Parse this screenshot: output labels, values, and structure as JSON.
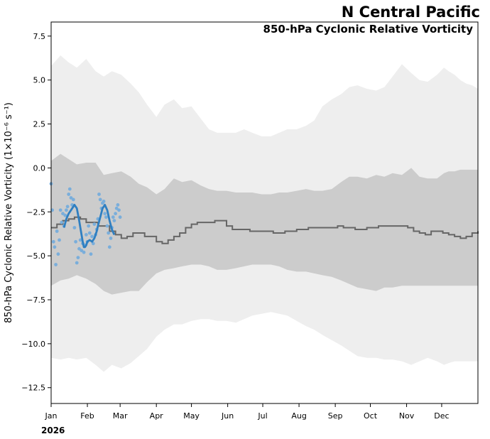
{
  "chart_data": {
    "type": "line",
    "title": "N Central Pacific",
    "subtitle": "850-hPa Cyclonic Relative Vorticity",
    "ylabel": "850-hPa Cyclonic Relative Vorticity (1×10⁻⁶ s⁻¹)",
    "xlabel": "",
    "year_label": "2026",
    "ylim": [
      -13.4,
      8.3
    ],
    "xlim": [
      0,
      365
    ],
    "y_ticks": [
      7.5,
      5.0,
      2.5,
      0.0,
      -2.5,
      -5.0,
      -7.5,
      -10.0,
      -12.5
    ],
    "y_tick_labels": [
      "7.5",
      "5.0",
      "2.5",
      "0.0",
      "−2.5",
      "−5.0",
      "−7.5",
      "−10.0",
      "−12.5"
    ],
    "x_ticks": [
      0,
      31,
      59,
      90,
      120,
      151,
      181,
      212,
      243,
      273,
      304,
      334
    ],
    "x_tick_labels": [
      "Jan",
      "Feb",
      "Mar",
      "Apr",
      "May",
      "Jun",
      "Jul",
      "Aug",
      "Sep",
      "Oct",
      "Nov",
      "Dec"
    ],
    "grid": false,
    "colors": {
      "outer_band": "#eeeeee",
      "inner_band": "#cccccc",
      "climatology": "#666666",
      "observed_points": "#7aaedb",
      "smoothed": "#2f7fc1"
    },
    "outer_band": {
      "x": [
        0,
        8,
        15,
        22,
        30,
        38,
        45,
        52,
        60,
        68,
        75,
        82,
        90,
        97,
        105,
        112,
        120,
        128,
        135,
        142,
        150,
        158,
        165,
        172,
        180,
        188,
        195,
        202,
        210,
        218,
        225,
        232,
        240,
        248,
        255,
        262,
        270,
        278,
        285,
        292,
        300,
        308,
        315,
        322,
        330,
        336,
        340,
        345,
        350,
        355,
        360,
        365
      ],
      "upper": [
        5.8,
        6.4,
        6.0,
        5.7,
        6.2,
        5.5,
        5.2,
        5.5,
        5.3,
        4.8,
        4.3,
        3.6,
        2.9,
        3.6,
        3.9,
        3.4,
        3.5,
        2.8,
        2.2,
        2.0,
        2.0,
        2.0,
        2.2,
        2.0,
        1.8,
        1.8,
        2.0,
        2.2,
        2.2,
        2.4,
        2.7,
        3.5,
        3.9,
        4.2,
        4.6,
        4.7,
        4.5,
        4.4,
        4.6,
        5.2,
        5.9,
        5.4,
        5.0,
        4.9,
        5.3,
        5.7,
        5.5,
        5.3,
        5.0,
        4.8,
        4.7,
        4.5
      ],
      "lower": [
        -10.8,
        -10.9,
        -10.8,
        -10.9,
        -10.8,
        -11.2,
        -11.6,
        -11.2,
        -11.4,
        -11.1,
        -10.7,
        -10.3,
        -9.6,
        -9.2,
        -8.9,
        -8.9,
        -8.7,
        -8.6,
        -8.6,
        -8.7,
        -8.7,
        -8.8,
        -8.6,
        -8.4,
        -8.3,
        -8.2,
        -8.3,
        -8.4,
        -8.7,
        -9.0,
        -9.2,
        -9.5,
        -9.8,
        -10.1,
        -10.4,
        -10.7,
        -10.8,
        -10.8,
        -10.9,
        -10.9,
        -11.0,
        -11.2,
        -11.0,
        -10.8,
        -11.0,
        -11.2,
        -11.1,
        -11.0,
        -11.0,
        -11.0,
        -11.0,
        -11.0
      ],
      "band_x_segments": [
        0,
        365
      ]
    },
    "inner_band": {
      "x": [
        0,
        8,
        15,
        22,
        30,
        38,
        45,
        52,
        60,
        68,
        75,
        82,
        90,
        97,
        105,
        112,
        120,
        128,
        135,
        142,
        150,
        158,
        165,
        172,
        180,
        188,
        195,
        202,
        210,
        218,
        225,
        232,
        240,
        248,
        255,
        262,
        270,
        278,
        285,
        292,
        300,
        308,
        315,
        322,
        330,
        336,
        340,
        345,
        350,
        355,
        360,
        365
      ],
      "upper": [
        0.4,
        0.8,
        0.5,
        0.2,
        0.3,
        0.3,
        -0.4,
        -0.3,
        -0.2,
        -0.5,
        -0.9,
        -1.1,
        -1.5,
        -1.2,
        -0.6,
        -0.8,
        -0.7,
        -1.0,
        -1.2,
        -1.3,
        -1.3,
        -1.4,
        -1.4,
        -1.4,
        -1.5,
        -1.5,
        -1.4,
        -1.4,
        -1.3,
        -1.2,
        -1.3,
        -1.3,
        -1.2,
        -0.8,
        -0.5,
        -0.5,
        -0.6,
        -0.4,
        -0.5,
        -0.3,
        -0.4,
        0.0,
        -0.5,
        -0.6,
        -0.6,
        -0.3,
        -0.2,
        -0.2,
        -0.1,
        -0.1,
        -0.1,
        -0.1
      ],
      "lower": [
        -6.7,
        -6.4,
        -6.3,
        -6.1,
        -6.3,
        -6.6,
        -7.0,
        -7.2,
        -7.1,
        -7.0,
        -7.0,
        -6.5,
        -6.0,
        -5.8,
        -5.7,
        -5.6,
        -5.5,
        -5.5,
        -5.6,
        -5.8,
        -5.8,
        -5.7,
        -5.6,
        -5.5,
        -5.5,
        -5.5,
        -5.6,
        -5.8,
        -5.9,
        -5.9,
        -6.0,
        -6.1,
        -6.2,
        -6.4,
        -6.6,
        -6.8,
        -6.9,
        -7.0,
        -6.8,
        -6.8,
        -6.7,
        -6.7,
        -6.7,
        -6.7,
        -6.7,
        -6.7,
        -6.7,
        -6.7,
        -6.7,
        -6.7,
        -6.7,
        -6.7
      ]
    },
    "climatology": {
      "x": [
        0,
        5,
        10,
        15,
        20,
        25,
        30,
        40,
        50,
        55,
        60,
        65,
        70,
        80,
        90,
        95,
        100,
        105,
        110,
        115,
        120,
        125,
        130,
        140,
        150,
        155,
        160,
        170,
        180,
        190,
        200,
        210,
        220,
        230,
        240,
        245,
        250,
        260,
        270,
        280,
        290,
        300,
        305,
        310,
        315,
        320,
        325,
        330,
        335,
        340,
        345,
        350,
        355,
        360,
        365
      ],
      "y": [
        -3.4,
        -3.2,
        -3.0,
        -2.9,
        -2.8,
        -2.9,
        -3.1,
        -3.3,
        -3.6,
        -3.8,
        -4.0,
        -3.9,
        -3.7,
        -3.9,
        -4.2,
        -4.3,
        -4.1,
        -3.9,
        -3.7,
        -3.4,
        -3.2,
        -3.1,
        -3.1,
        -3.0,
        -3.3,
        -3.5,
        -3.5,
        -3.6,
        -3.6,
        -3.7,
        -3.6,
        -3.5,
        -3.4,
        -3.4,
        -3.4,
        -3.3,
        -3.4,
        -3.5,
        -3.4,
        -3.3,
        -3.3,
        -3.3,
        -3.4,
        -3.6,
        -3.7,
        -3.8,
        -3.6,
        -3.6,
        -3.7,
        -3.8,
        -3.9,
        -4.0,
        -3.9,
        -3.7,
        -3.6
      ]
    },
    "observed_points": {
      "x": [
        0,
        1,
        2,
        3,
        4,
        5,
        6,
        7,
        8,
        9,
        10,
        11,
        12,
        13,
        14,
        15,
        16,
        17,
        18,
        19,
        20,
        21,
        22,
        23,
        24,
        25,
        26,
        27,
        28,
        29,
        30,
        31,
        32,
        33,
        34,
        35,
        36,
        37,
        38,
        39,
        40,
        41,
        42,
        43,
        44,
        45,
        46,
        47,
        48,
        49,
        50,
        51,
        52,
        53,
        54,
        55,
        56,
        57,
        58,
        59
      ],
      "y": [
        -0.9,
        -2.4,
        -4.2,
        -4.5,
        -5.5,
        -3.6,
        -4.9,
        -4.1,
        -2.4,
        -3.1,
        -2.6,
        -3.3,
        -2.7,
        -2.4,
        -2.2,
        -1.5,
        -1.2,
        -1.7,
        -2.1,
        -1.8,
        -3.4,
        -4.2,
        -5.4,
        -5.1,
        -4.6,
        -4.1,
        -4.7,
        -4.3,
        -4.8,
        -4.4,
        -3.8,
        -4.2,
        -3.3,
        -3.7,
        -4.9,
        -3.9,
        -4.3,
        -3.2,
        -3.8,
        -3.5,
        -2.9,
        -1.5,
        -1.8,
        -2.3,
        -2.0,
        -1.9,
        -2.6,
        -2.8,
        -3.3,
        -3.7,
        -4.5,
        -4.0,
        -3.4,
        -2.8,
        -3.0,
        -2.6,
        -2.3,
        -2.1,
        -2.4,
        -2.8
      ]
    },
    "smoothed": {
      "x": [
        11,
        13,
        15,
        17,
        19,
        20,
        22,
        24,
        26,
        27,
        28,
        29,
        30,
        31,
        33,
        35,
        37,
        39,
        40,
        42,
        44,
        46,
        48,
        50,
        52,
        54
      ],
      "y": [
        -3.4,
        -2.9,
        -2.6,
        -2.4,
        -2.2,
        -2.1,
        -2.3,
        -3.0,
        -3.8,
        -4.2,
        -4.5,
        -4.5,
        -4.4,
        -4.2,
        -4.1,
        -4.2,
        -4.0,
        -3.6,
        -3.3,
        -2.8,
        -2.3,
        -2.1,
        -2.4,
        -3.0,
        -3.5,
        -3.8
      ]
    }
  }
}
